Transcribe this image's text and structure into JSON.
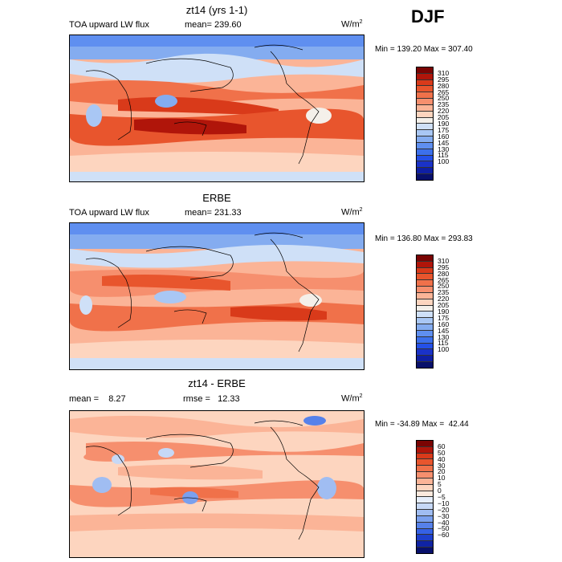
{
  "season": "DJF",
  "units_base": "W/m",
  "units_exp": "2",
  "panels": [
    {
      "title": "zt14 (yrs 1-1)",
      "left_label": "TOA upward LW flux",
      "stat_label": "mean= 239.60",
      "minmax": "Min = 139.20 Max = 307.40",
      "colorbar": {
        "colors": [
          "#7a0403",
          "#b0150a",
          "#d93a1a",
          "#e8552d",
          "#f0714a",
          "#f68f6e",
          "#fbb497",
          "#fdd5bf",
          "#f4f0ea",
          "#cfe0f7",
          "#a9c7f4",
          "#84acf0",
          "#5f8ff0",
          "#3c70ec",
          "#2450e8",
          "#1a32c8",
          "#0f1fa3",
          "#08106b"
        ],
        "labels": [
          "310",
          "295",
          "280",
          "265",
          "250",
          "235",
          "220",
          "205",
          "190",
          "175",
          "160",
          "145",
          "130",
          "115",
          "100"
        ]
      }
    },
    {
      "title": "ERBE",
      "left_label": "TOA upward LW flux",
      "stat_label": "mean= 231.33",
      "minmax": "Min = 136.80 Max = 293.83",
      "colorbar": {
        "colors": [
          "#7a0403",
          "#b0150a",
          "#d93a1a",
          "#e8552d",
          "#f0714a",
          "#f68f6e",
          "#fbb497",
          "#fdd5bf",
          "#f4f0ea",
          "#cfe0f7",
          "#a9c7f4",
          "#84acf0",
          "#5f8ff0",
          "#3c70ec",
          "#2450e8",
          "#1a32c8",
          "#0f1fa3",
          "#08106b"
        ],
        "labels": [
          "310",
          "295",
          "280",
          "265",
          "250",
          "235",
          "220",
          "205",
          "190",
          "175",
          "160",
          "145",
          "130",
          "115",
          "100"
        ]
      }
    },
    {
      "title": "zt14 - ERBE",
      "left_label": "mean =    8.27",
      "stat_label": "rmse =   12.33",
      "minmax": "Min = -34.89 Max =  42.44",
      "colorbar": {
        "colors": [
          "#7a0403",
          "#b0150a",
          "#d93a1a",
          "#e8552d",
          "#f0714a",
          "#f68f6e",
          "#fbb497",
          "#fdd5bf",
          "#fbe9dd",
          "#e6eefb",
          "#c6d8f6",
          "#a0bdf2",
          "#7aa0ee",
          "#5681ea",
          "#3561e6",
          "#1e3fcc",
          "#0f23a4",
          "#08106b"
        ],
        "labels": [
          "60",
          "50",
          "40",
          "30",
          "20",
          "10",
          "5",
          "0",
          "−5",
          "−10",
          "−20",
          "−30",
          "−40",
          "−50",
          "−60"
        ]
      }
    }
  ]
}
